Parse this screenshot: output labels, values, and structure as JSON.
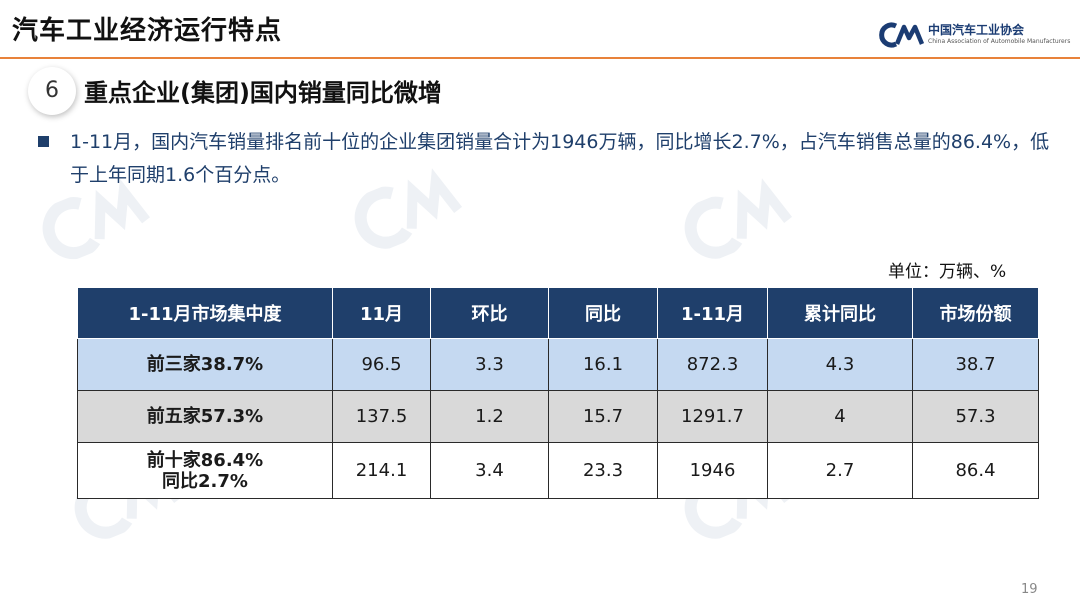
{
  "header": {
    "title": "汽车工业经济运行特点",
    "logo_cn": "中国汽车工业协会",
    "logo_en": "China Association of Automobile Manufacturers",
    "accent_color": "#e8823a",
    "brand_color": "#1b3c73"
  },
  "section": {
    "number": "6",
    "title": "重点企业(集团)国内销量同比微增"
  },
  "paragraph": "1-11月，国内汽车销量排名前十位的企业集团销量合计为1946万辆，同比增长2.7%，占汽车销售总量的86.4%，低于上年同期1.6个百分点。",
  "unit": "单位：万辆、%",
  "table": {
    "headers": [
      "1-11月市场集中度",
      "11月",
      "环比",
      "同比",
      "1-11月",
      "累计同比",
      "市场份额"
    ],
    "rows": [
      {
        "label_line1": "前三家38.7%",
        "label_line2": "",
        "cells": [
          "96.5",
          "3.3",
          "16.1",
          "872.3",
          "4.3",
          "38.7"
        ]
      },
      {
        "label_line1": "前五家57.3%",
        "label_line2": "",
        "cells": [
          "137.5",
          "1.2",
          "15.7",
          "1291.7",
          "4",
          "57.3"
        ]
      },
      {
        "label_line1": "前十家86.4%",
        "label_line2": "同比2.7%",
        "cells": [
          "214.1",
          "3.4",
          "23.3",
          "1946",
          "2.7",
          "86.4"
        ]
      }
    ],
    "header_color": "#1f3f6b",
    "row_colors": [
      "#c5d9f1",
      "#d9d9d9",
      "#ffffff"
    ]
  },
  "page_number": "19"
}
